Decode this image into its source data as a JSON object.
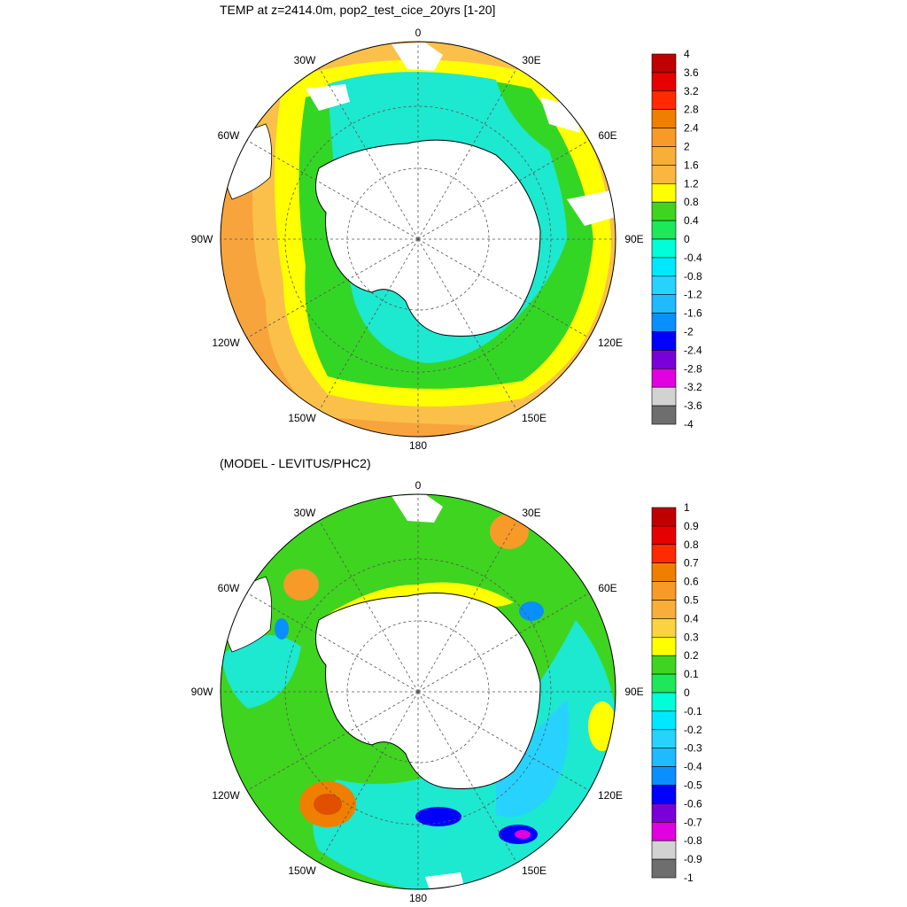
{
  "panels": [
    {
      "title": "TEMP at z=2414.0m, pop2_test_cice_20yrs [1-20]",
      "colorbar": {
        "labels": [
          "4",
          "3.6",
          "3.2",
          "2.8",
          "2.4",
          "2",
          "1.6",
          "1.2",
          "0.8",
          "0.4",
          "0",
          "-0.4",
          "-0.8",
          "-1.2",
          "-1.6",
          "-2",
          "-2.4",
          "-2.8",
          "-3.2",
          "-3.6",
          "-4"
        ],
        "colors": [
          "#c00000",
          "#e60000",
          "#ff2a00",
          "#f07f00",
          "#f89a28",
          "#faae3a",
          "#fbb63f",
          "#ffff00",
          "#3fd41f",
          "#1ee85a",
          "#00ffd8",
          "#00e8ff",
          "#28d2ff",
          "#1fbaff",
          "#0a8fff",
          "#0000ff",
          "#7a00d8",
          "#e000e0",
          "#d2d2d2",
          "#6e6e6e"
        ]
      }
    },
    {
      "title": "(MODEL - LEVITUS/PHC2)",
      "colorbar": {
        "labels": [
          "1",
          "0.9",
          "0.8",
          "0.7",
          "0.6",
          "0.5",
          "0.4",
          "0.3",
          "0.2",
          "0.1",
          "0",
          "-0.1",
          "-0.2",
          "-0.3",
          "-0.4",
          "-0.5",
          "-0.6",
          "-0.7",
          "-0.8",
          "-0.9",
          "-1"
        ],
        "colors": [
          "#c00000",
          "#e60000",
          "#ff2a00",
          "#f07f00",
          "#f89a28",
          "#faae3a",
          "#fbd23f",
          "#ffff00",
          "#3fd41f",
          "#1ee85a",
          "#00ffd8",
          "#00e8ff",
          "#28d2ff",
          "#1fbaff",
          "#0a8fff",
          "#0000ff",
          "#7a00d8",
          "#e000e0",
          "#d2d2d2",
          "#6e6e6e"
        ]
      }
    }
  ],
  "longitude_labels": {
    "top": "0",
    "right_top": "30E",
    "left_top": "30W",
    "left_upper": "60W",
    "right_upper": "60E",
    "left_mid": "90W",
    "right_mid": "90E",
    "left_lower": "120W",
    "right_lower": "120E",
    "left_bottom": "150W",
    "right_bottom": "150E",
    "bottom": "180"
  },
  "field_colors": {
    "land": "#ffffff",
    "outline": "#000000"
  }
}
